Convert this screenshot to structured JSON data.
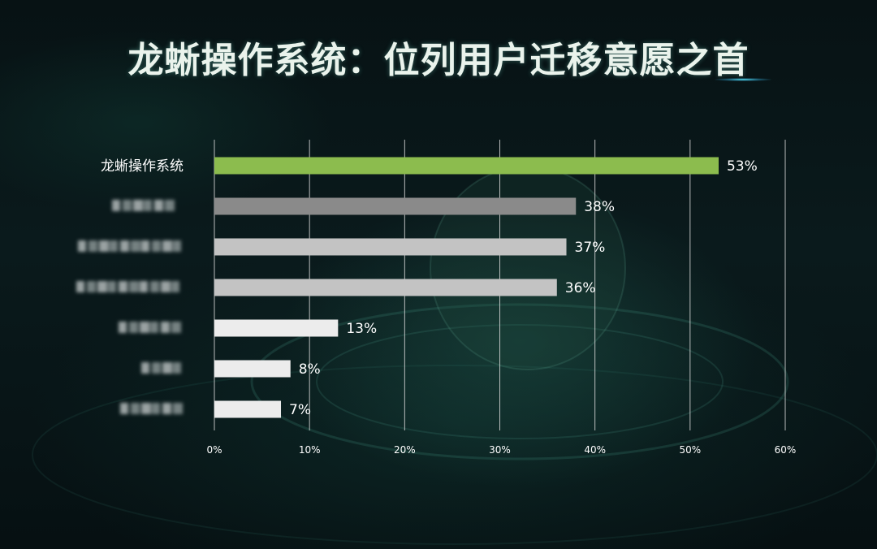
{
  "title": "龙蜥操作系统：位列用户迁移意愿之首",
  "colors": {
    "highlight": "#8cbc4e",
    "bar_dark": "#8a8a8a",
    "bar_mid": "#c3c3c3",
    "bar_light": "#ececec",
    "gridline": "#d9d9d9",
    "background": "#071214"
  },
  "chart_data": {
    "type": "bar",
    "orientation": "horizontal",
    "categories": [
      "龙蜥操作系统",
      "",
      "",
      "",
      "",
      "",
      ""
    ],
    "values": [
      53,
      38,
      37,
      36,
      13,
      8,
      7
    ],
    "value_labels": [
      "53%",
      "38%",
      "37%",
      "36%",
      "13%",
      "8%",
      "7%"
    ],
    "bar_colors": [
      "#8cbc4e",
      "#8a8a8a",
      "#c3c3c3",
      "#c3c3c3",
      "#ececec",
      "#ececec",
      "#ececec"
    ],
    "category_label_blurred": [
      false,
      true,
      true,
      true,
      true,
      true,
      true
    ],
    "xlim": [
      0,
      60
    ],
    "xticks": [
      0,
      10,
      20,
      30,
      40,
      50,
      60
    ],
    "xtick_labels": [
      "0%",
      "10%",
      "20%",
      "30%",
      "40%",
      "50%",
      "60%"
    ],
    "grid": true,
    "legend": "none",
    "xlabel": "",
    "ylabel": ""
  }
}
